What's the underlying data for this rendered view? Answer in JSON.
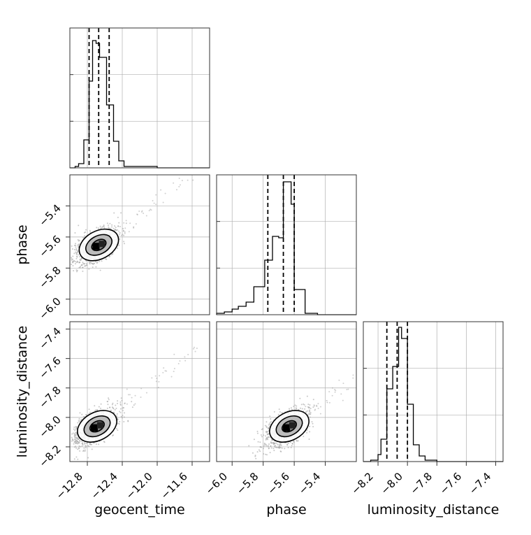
{
  "chart_data": [
    {
      "type": "histogram",
      "param": "geocent_time",
      "xlim": [
        -13.0,
        -11.4
      ],
      "bins": [
        {
          "x": -13.0,
          "h": 0.0
        },
        {
          "x": -12.94,
          "h": 0.01
        },
        {
          "x": -12.9,
          "h": 0.03
        },
        {
          "x": -12.84,
          "h": 0.2
        },
        {
          "x": -12.78,
          "h": 0.62
        },
        {
          "x": -12.74,
          "h": 0.91
        },
        {
          "x": -12.7,
          "h": 0.89
        },
        {
          "x": -12.66,
          "h": 0.79
        },
        {
          "x": -12.62,
          "h": 0.79
        },
        {
          "x": -12.58,
          "h": 0.45
        },
        {
          "x": -12.5,
          "h": 0.19
        },
        {
          "x": -12.44,
          "h": 0.05
        },
        {
          "x": -12.38,
          "h": 0.01
        },
        {
          "x": -12.3,
          "h": 0.01
        },
        {
          "x": -12.0,
          "h": 0.0
        }
      ],
      "quantiles": [
        -12.78,
        -12.67,
        -12.55
      ]
    },
    {
      "type": "scatter_contour",
      "xparam": "geocent_time",
      "yparam": "phase",
      "xlim": [
        -13.0,
        -11.4
      ],
      "ylim": [
        -6.1,
        -5.2
      ],
      "peak": [
        -12.7,
        -5.66
      ],
      "ylabel": "phase"
    },
    {
      "type": "histogram",
      "param": "phase",
      "xlim": [
        -6.1,
        -5.2
      ],
      "bins": [
        {
          "x": -6.1,
          "h": 0.01
        },
        {
          "x": -6.05,
          "h": 0.02
        },
        {
          "x": -6.0,
          "h": 0.04
        },
        {
          "x": -5.96,
          "h": 0.06
        },
        {
          "x": -5.91,
          "h": 0.09
        },
        {
          "x": -5.86,
          "h": 0.2
        },
        {
          "x": -5.79,
          "h": 0.39
        },
        {
          "x": -5.74,
          "h": 0.56
        },
        {
          "x": -5.7,
          "h": 0.55
        },
        {
          "x": -5.67,
          "h": 0.95
        },
        {
          "x": -5.62,
          "h": 0.79
        },
        {
          "x": -5.6,
          "h": 0.18
        },
        {
          "x": -5.53,
          "h": 0.01
        },
        {
          "x": -5.45,
          "h": 0.0
        }
      ],
      "quantiles": [
        -5.77,
        -5.67,
        -5.6
      ]
    },
    {
      "type": "scatter_contour",
      "xparam": "geocent_time",
      "yparam": "luminosity_distance",
      "xlim": [
        -13.0,
        -11.4
      ],
      "ylim": [
        -8.3,
        -7.35
      ],
      "peak": [
        -12.72,
        -8.07
      ],
      "xlabel": "geocent_time",
      "ylabel": "luminosity_distance"
    },
    {
      "type": "scatter_contour",
      "xparam": "phase",
      "yparam": "luminosity_distance",
      "xlim": [
        -6.1,
        -5.2
      ],
      "ylim": [
        -8.3,
        -7.35
      ],
      "peak": [
        -5.65,
        -8.07
      ],
      "xlabel": "phase"
    },
    {
      "type": "histogram",
      "param": "luminosity_distance",
      "xlim": [
        -8.3,
        -7.35
      ],
      "bins": [
        {
          "x": -8.3,
          "h": 0.0
        },
        {
          "x": -8.25,
          "h": 0.01
        },
        {
          "x": -8.2,
          "h": 0.05
        },
        {
          "x": -8.18,
          "h": 0.16
        },
        {
          "x": -8.14,
          "h": 0.52
        },
        {
          "x": -8.1,
          "h": 0.68
        },
        {
          "x": -8.06,
          "h": 0.96
        },
        {
          "x": -8.04,
          "h": 0.88
        },
        {
          "x": -8.0,
          "h": 0.41
        },
        {
          "x": -7.96,
          "h": 0.12
        },
        {
          "x": -7.92,
          "h": 0.04
        },
        {
          "x": -7.88,
          "h": 0.01
        },
        {
          "x": -7.8,
          "h": 0.0
        }
      ],
      "quantiles": [
        -8.14,
        -8.07,
        -8.0
      ],
      "xlabel": "luminosity_distance"
    }
  ],
  "ticks": {
    "geocent_time": [
      "−12.8",
      "−12.4",
      "−12.0",
      "−11.6"
    ],
    "phase": [
      "−6.0",
      "−5.8",
      "−5.6",
      "−5.4"
    ],
    "luminosity_distance": [
      "−8.2",
      "−8.0",
      "−7.8",
      "−7.6",
      "−7.4"
    ]
  },
  "colors": {
    "axes": "#333333",
    "grid": "#b0b0b0",
    "line": "#000000",
    "scatter": "#9a9a9a",
    "contour_fill": "#5e5e5e"
  }
}
